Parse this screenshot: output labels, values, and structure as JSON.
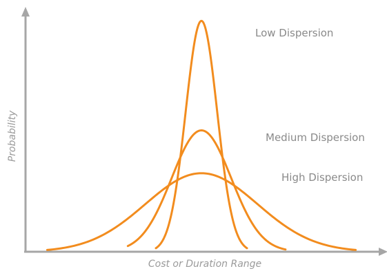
{
  "chart_data": {
    "type": "line",
    "xlabel": "Cost or Duration Range",
    "ylabel": "Probability",
    "xlim": [
      0,
      10
    ],
    "ylim": [
      0,
      1
    ],
    "grid": false,
    "legend": "none",
    "colors": {
      "curve": "#f28c1e",
      "axis": "#a6a6a6"
    },
    "series": [
      {
        "name": "Low Dispersion",
        "mean": 5.0,
        "sd": 0.45,
        "peak": 0.97,
        "range": [
          3.7,
          6.3
        ]
      },
      {
        "name": "Medium Dispersion",
        "mean": 5.0,
        "sd": 0.85,
        "peak": 0.51,
        "range": [
          2.9,
          7.4
        ]
      },
      {
        "name": "High Dispersion",
        "mean": 5.0,
        "sd": 1.6,
        "peak": 0.33,
        "range": [
          0.6,
          9.4
        ]
      }
    ]
  }
}
